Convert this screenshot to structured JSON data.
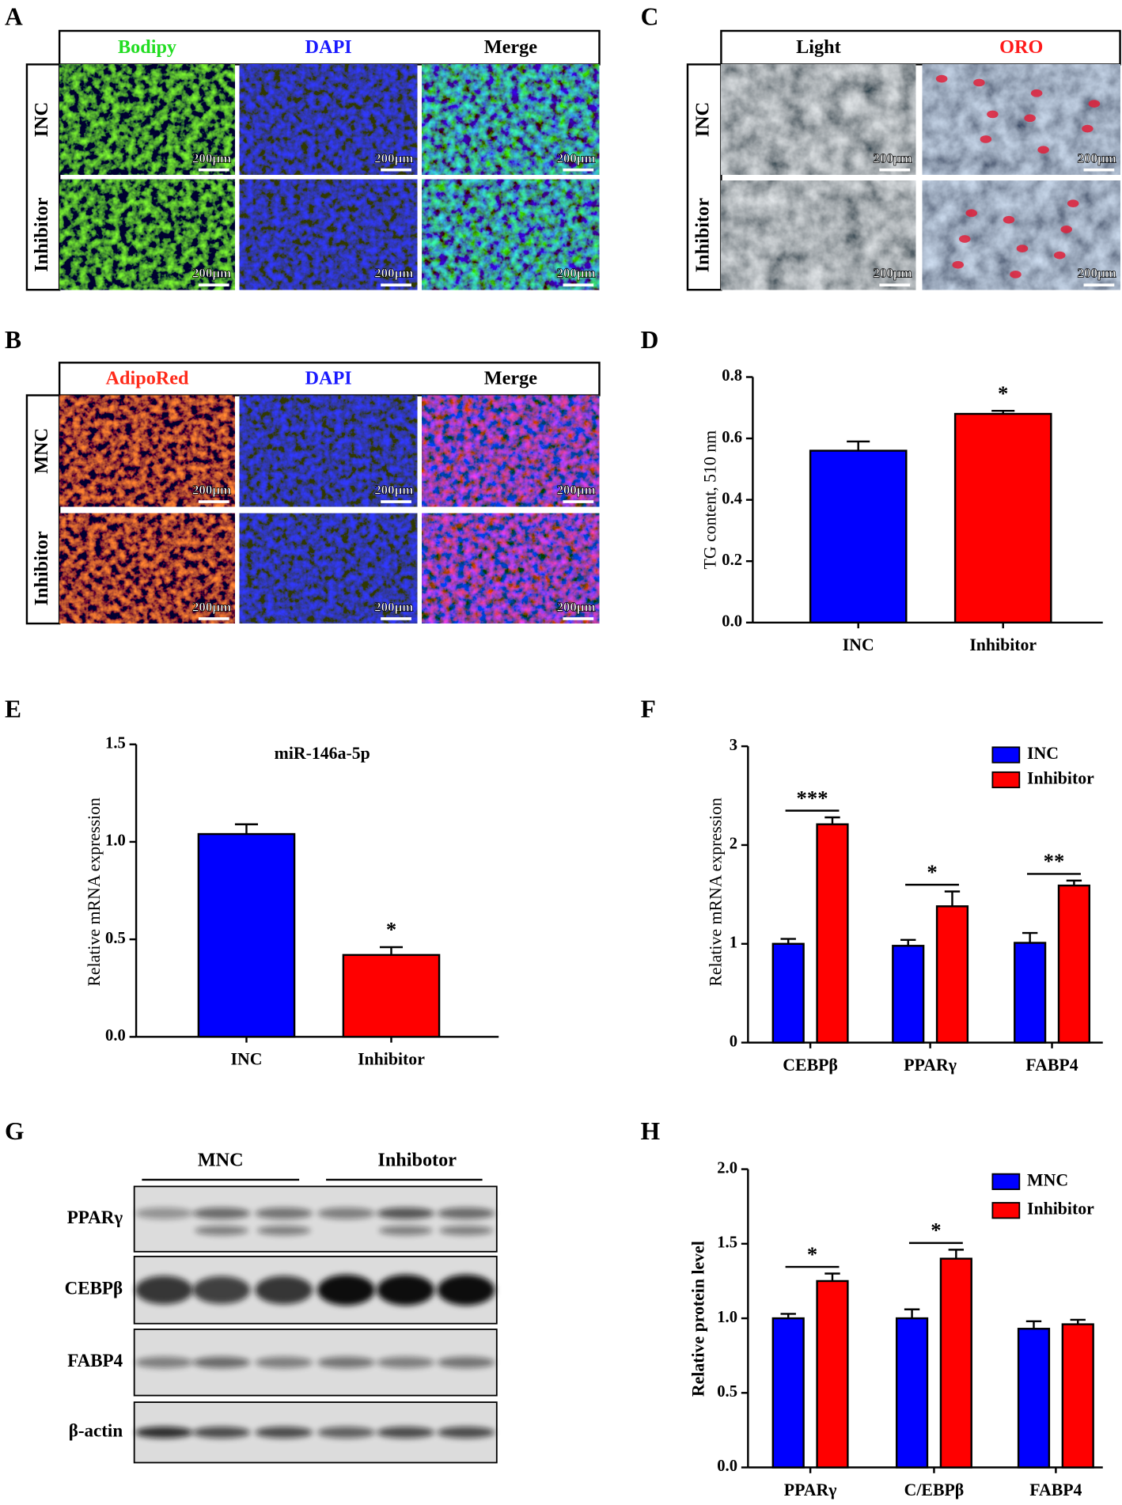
{
  "figure_labels": [
    "A",
    "B",
    "C",
    "D",
    "E",
    "F",
    "G",
    "H"
  ],
  "scale_bar": "200μm",
  "fluorescence_A": {
    "columns": [
      "Bodipy",
      "DAPI",
      "Merge"
    ],
    "column_colors": [
      "#22dd22",
      "#1a1aff",
      "#000000"
    ],
    "rows": [
      "INC",
      "Inhibitor"
    ]
  },
  "fluorescence_B": {
    "columns": [
      "AdipoRed",
      "DAPI",
      "Merge"
    ],
    "column_colors": [
      "#ff2a1a",
      "#1a1aff",
      "#000000"
    ],
    "rows": [
      "MNC",
      "Inhibitor"
    ]
  },
  "staining_C": {
    "columns": [
      "Light",
      "ORO"
    ],
    "column_colors": [
      "#000000",
      "#ff1a1a"
    ],
    "rows": [
      "INC",
      "Inhibitor"
    ]
  },
  "western_blot_G": {
    "groups": [
      "MNC",
      "Inhibotor"
    ],
    "proteins": [
      "PPARγ",
      "CEBPβ",
      "FABP4",
      "β-actin"
    ]
  },
  "chart_data": [
    {
      "type": "bar",
      "y_label": "TG content, 510 nm",
      "categories": [
        "INC",
        "Inhibitor"
      ],
      "values": [
        0.56,
        0.68
      ],
      "errors": [
        0.03,
        0.01
      ],
      "colors": [
        "#0000ff",
        "#ff0000"
      ],
      "annotations": [
        null,
        "*"
      ],
      "ylim": [
        0,
        0.8
      ],
      "yticks": [
        {
          "value": 0,
          "label": "0.0"
        },
        0.2,
        0.4,
        0.6,
        0.8
      ]
    },
    {
      "type": "bar",
      "subtitle": "miR-146a-5p",
      "y_label": "Relative mRNA expression",
      "categories": [
        "INC",
        "Inhibitor"
      ],
      "values": [
        1.04,
        0.42
      ],
      "errors": [
        0.05,
        0.04
      ],
      "colors": [
        "#0000ff",
        "#ff0000"
      ],
      "annotations": [
        null,
        "*"
      ],
      "ylim": [
        0,
        1.5
      ],
      "yticks": [
        {
          "value": 0,
          "label": "0.0"
        },
        0.5,
        {
          "value": 1,
          "label": "1.0"
        },
        1.5
      ]
    },
    {
      "type": "bar",
      "y_label": "Relative mRNA expression",
      "categories": [
        "CEBPβ",
        "PPARγ",
        "FABP4"
      ],
      "series": [
        {
          "name": "INC",
          "color": "#0000ff",
          "values": [
            1.0,
            0.98,
            1.01
          ],
          "errors": [
            0.05,
            0.06,
            0.1
          ]
        },
        {
          "name": "Inhibitor",
          "color": "#ff0000",
          "values": [
            2.21,
            1.38,
            1.59
          ],
          "errors": [
            0.07,
            0.15,
            0.05
          ]
        }
      ],
      "significance": [
        "***",
        "*",
        "**"
      ],
      "ylim": [
        0,
        3
      ],
      "yticks": [
        0,
        1,
        2,
        3
      ],
      "legend": "top-right"
    },
    {
      "type": "bar",
      "y_label": "Relative protein level",
      "categories": [
        "PPARγ",
        "C/EBPβ",
        "FABP4"
      ],
      "series": [
        {
          "name": "MNC",
          "color": "#0000ff",
          "values": [
            1.0,
            1.0,
            0.93
          ],
          "errors": [
            0.03,
            0.06,
            0.05
          ]
        },
        {
          "name": "Inhibitor",
          "color": "#ff0000",
          "values": [
            1.25,
            1.4,
            0.96
          ],
          "errors": [
            0.05,
            0.06,
            0.03
          ]
        }
      ],
      "significance": [
        "*",
        "*",
        null
      ],
      "ylim": [
        0,
        2
      ],
      "yticks": [
        {
          "value": 0,
          "label": "0.0"
        },
        0.5,
        {
          "value": 1,
          "label": "1.0"
        },
        1.5,
        {
          "value": 2,
          "label": "2.0"
        }
      ],
      "legend": "top-right"
    }
  ]
}
